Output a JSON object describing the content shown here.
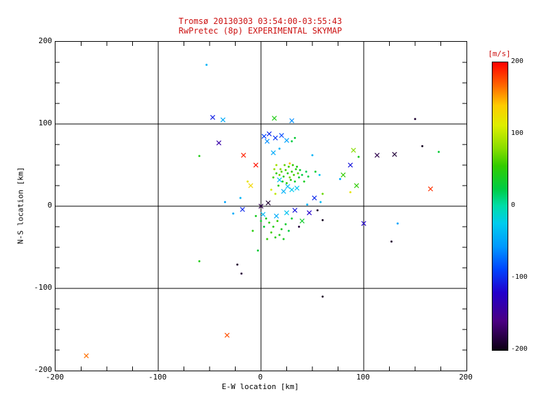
{
  "chart_data": {
    "type": "scatter",
    "title_line1": "Tromsø 20130303 03:54:00-03:55:43",
    "title_line2": "RwPretec (8p) EXPERIMENTAL SKYMAP",
    "title_color": "#cc1111",
    "xlabel": "E-W location [km]",
    "ylabel": "N-S location [km]",
    "xlim": [
      -200,
      200
    ],
    "ylim": [
      -200,
      200
    ],
    "x_ticks": [
      -200,
      -100,
      0,
      100,
      200
    ],
    "y_ticks": [
      -200,
      -100,
      0,
      100,
      200
    ],
    "grid": true,
    "grid_values": [
      -100,
      0,
      100
    ],
    "minor_tick_step": 25,
    "axis_color": "#000000",
    "colorbar": {
      "label": "[m/s]",
      "label_color": "#cc1111",
      "min": -200,
      "max": 200,
      "ticks": [
        200,
        100,
        0,
        -100,
        -200
      ]
    },
    "colormap_stops": [
      {
        "t": 0.0,
        "c": "#0c0012"
      },
      {
        "t": 0.1,
        "c": "#4b0082"
      },
      {
        "t": 0.2,
        "c": "#2200cc"
      },
      {
        "t": 0.28,
        "c": "#0044ff"
      },
      {
        "t": 0.36,
        "c": "#0099ff"
      },
      {
        "t": 0.44,
        "c": "#00ccee"
      },
      {
        "t": 0.5,
        "c": "#00ddaa"
      },
      {
        "t": 0.56,
        "c": "#00cc44"
      },
      {
        "t": 0.64,
        "c": "#33cc00"
      },
      {
        "t": 0.7,
        "c": "#88dd00"
      },
      {
        "t": 0.78,
        "c": "#ddee00"
      },
      {
        "t": 0.85,
        "c": "#ffcc00"
      },
      {
        "t": 0.92,
        "c": "#ff6600"
      },
      {
        "t": 1.0,
        "c": "#ff0000"
      }
    ],
    "points_format": [
      "x_km",
      "y_km",
      "velocity_ms",
      "marker(d=dot,x=cross)"
    ],
    "points": [
      [
        -170,
        -182,
        165,
        "x"
      ],
      [
        -33,
        -157,
        175,
        "x"
      ],
      [
        60,
        -110,
        -195,
        "d"
      ],
      [
        -23,
        -71,
        -190,
        "d"
      ],
      [
        -19,
        -82,
        -185,
        "d"
      ],
      [
        -53,
        172,
        -40,
        "d"
      ],
      [
        -47,
        108,
        -105,
        "x"
      ],
      [
        -37,
        105,
        -45,
        "x"
      ],
      [
        -41,
        77,
        -140,
        "x"
      ],
      [
        13,
        107,
        45,
        "x"
      ],
      [
        30,
        104,
        -60,
        "x"
      ],
      [
        150,
        106,
        -190,
        "d"
      ],
      [
        157,
        73,
        -195,
        "d"
      ],
      [
        173,
        66,
        30,
        "d"
      ],
      [
        113,
        62,
        -180,
        "x"
      ],
      [
        130,
        63,
        -185,
        "x"
      ],
      [
        -60,
        61,
        45,
        "d"
      ],
      [
        -17,
        62,
        190,
        "x"
      ],
      [
        165,
        21,
        185,
        "x"
      ],
      [
        127,
        -43,
        -190,
        "d"
      ],
      [
        133,
        -21,
        -50,
        "d"
      ],
      [
        100,
        -21,
        -120,
        "x"
      ],
      [
        87,
        17,
        120,
        "d"
      ],
      [
        93,
        25,
        55,
        "x"
      ],
      [
        87,
        50,
        -110,
        "x"
      ],
      [
        90,
        68,
        80,
        "x"
      ],
      [
        95,
        60,
        40,
        "d"
      ],
      [
        50,
        62,
        -40,
        "d"
      ],
      [
        60,
        -17,
        -195,
        "d"
      ],
      [
        47,
        -8,
        -120,
        "x"
      ],
      [
        -3,
        -54,
        30,
        "d"
      ],
      [
        -60,
        -67,
        45,
        "d"
      ],
      [
        3,
        85,
        -90,
        "x"
      ],
      [
        8,
        88,
        -100,
        "x"
      ],
      [
        14,
        83,
        -95,
        "x"
      ],
      [
        20,
        86,
        -85,
        "x"
      ],
      [
        6,
        79,
        -60,
        "x"
      ],
      [
        25,
        80,
        -50,
        "x"
      ],
      [
        30,
        79,
        25,
        "d"
      ],
      [
        33,
        83,
        30,
        "d"
      ],
      [
        12,
        65,
        -45,
        "x"
      ],
      [
        18,
        70,
        -40,
        "d"
      ],
      [
        -5,
        50,
        195,
        "x"
      ],
      [
        -10,
        25,
        130,
        "x"
      ],
      [
        -13,
        30,
        120,
        "d"
      ],
      [
        28,
        52,
        145,
        "d"
      ],
      [
        7,
        4,
        -190,
        "x"
      ],
      [
        0,
        0,
        -180,
        "x"
      ],
      [
        37,
        -25,
        -185,
        "d"
      ],
      [
        55,
        -5,
        -190,
        "d"
      ],
      [
        -20,
        10,
        -40,
        "d"
      ],
      [
        -18,
        -4,
        -100,
        "x"
      ],
      [
        -27,
        -9,
        -45,
        "d"
      ],
      [
        -35,
        5,
        -50,
        "d"
      ],
      [
        2,
        -10,
        -35,
        "x"
      ],
      [
        15,
        -12,
        -45,
        "x"
      ],
      [
        25,
        -8,
        -30,
        "x"
      ],
      [
        33,
        -5,
        -110,
        "x"
      ],
      [
        52,
        10,
        -100,
        "x"
      ],
      [
        45,
        2,
        -40,
        "d"
      ],
      [
        58,
        5,
        -35,
        "d"
      ],
      [
        57,
        38,
        -30,
        "d"
      ],
      [
        77,
        33,
        -45,
        "d"
      ],
      [
        12,
        35,
        60,
        "d"
      ],
      [
        15,
        40,
        55,
        "d"
      ],
      [
        18,
        38,
        70,
        "d"
      ],
      [
        20,
        42,
        65,
        "d"
      ],
      [
        22,
        36,
        50,
        "d"
      ],
      [
        24,
        44,
        60,
        "d"
      ],
      [
        26,
        40,
        45,
        "d"
      ],
      [
        28,
        35,
        75,
        "d"
      ],
      [
        30,
        42,
        55,
        "d"
      ],
      [
        32,
        38,
        60,
        "d"
      ],
      [
        34,
        45,
        50,
        "d"
      ],
      [
        36,
        40,
        65,
        "d"
      ],
      [
        21,
        30,
        40,
        "d"
      ],
      [
        25,
        28,
        55,
        "d"
      ],
      [
        29,
        32,
        50,
        "d"
      ],
      [
        17,
        25,
        45,
        "d"
      ],
      [
        23,
        50,
        70,
        "d"
      ],
      [
        27,
        48,
        60,
        "d"
      ],
      [
        31,
        50,
        55,
        "d"
      ],
      [
        35,
        48,
        45,
        "d"
      ],
      [
        19,
        45,
        80,
        "d"
      ],
      [
        33,
        30,
        35,
        "d"
      ],
      [
        37,
        35,
        35,
        "d"
      ],
      [
        40,
        38,
        25,
        "d"
      ],
      [
        42,
        30,
        40,
        "d"
      ],
      [
        15,
        50,
        90,
        "d"
      ],
      [
        13,
        45,
        85,
        "d"
      ],
      [
        38,
        44,
        30,
        "d"
      ],
      [
        44,
        42,
        20,
        "d"
      ],
      [
        46,
        36,
        25,
        "d"
      ],
      [
        53,
        42,
        30,
        "d"
      ],
      [
        60,
        15,
        70,
        "d"
      ],
      [
        80,
        38,
        55,
        "x"
      ],
      [
        18,
        32,
        -30,
        "x"
      ],
      [
        26,
        24,
        -35,
        "x"
      ],
      [
        30,
        20,
        -25,
        "x"
      ],
      [
        22,
        18,
        -40,
        "x"
      ],
      [
        35,
        22,
        -30,
        "x"
      ],
      [
        10,
        20,
        110,
        "d"
      ],
      [
        14,
        15,
        100,
        "d"
      ],
      [
        5,
        -15,
        40,
        "d"
      ],
      [
        8,
        -20,
        50,
        "d"
      ],
      [
        12,
        -25,
        45,
        "d"
      ],
      [
        16,
        -18,
        55,
        "d"
      ],
      [
        20,
        -28,
        40,
        "d"
      ],
      [
        24,
        -22,
        35,
        "d"
      ],
      [
        10,
        -32,
        60,
        "d"
      ],
      [
        14,
        -38,
        50,
        "d"
      ],
      [
        18,
        -35,
        45,
        "d"
      ],
      [
        3,
        -25,
        30,
        "d"
      ],
      [
        0,
        -18,
        35,
        "d"
      ],
      [
        27,
        -30,
        25,
        "d"
      ],
      [
        6,
        -40,
        55,
        "d"
      ],
      [
        22,
        -40,
        40,
        "d"
      ],
      [
        30,
        -15,
        30,
        "d"
      ],
      [
        40,
        -18,
        35,
        "x"
      ],
      [
        -8,
        -30,
        50,
        "d"
      ],
      [
        -5,
        -12,
        40,
        "d"
      ]
    ]
  }
}
